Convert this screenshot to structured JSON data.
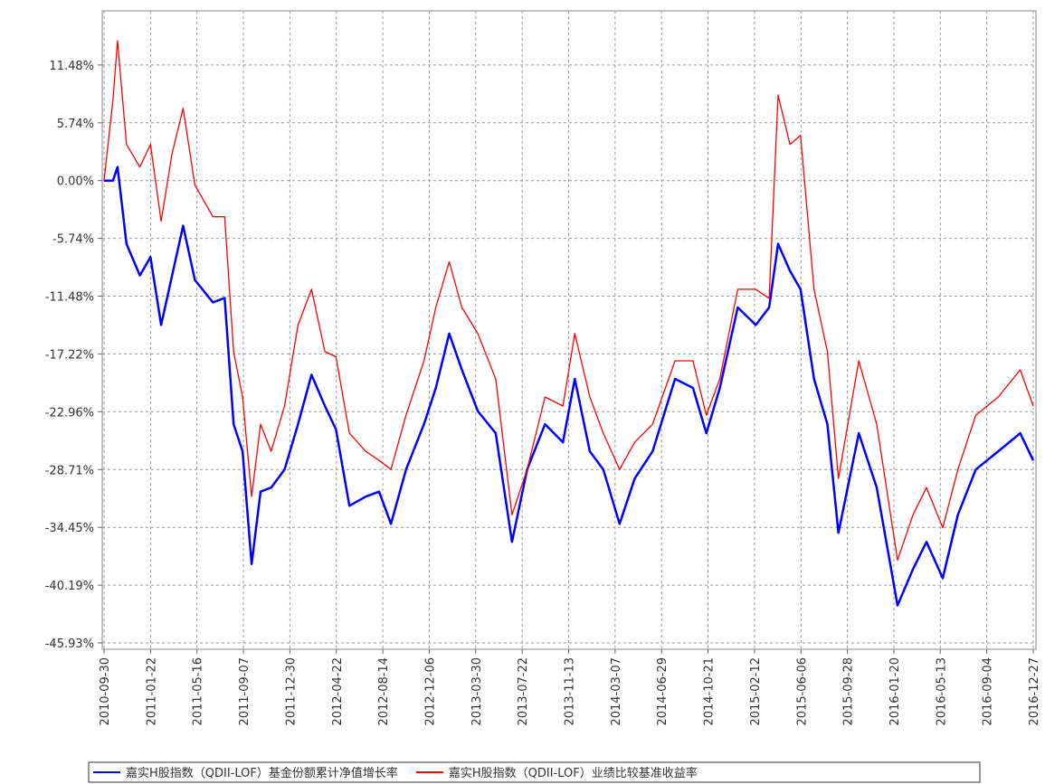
{
  "chart_data": {
    "type": "line",
    "x": [
      "2010-09-30",
      "2010-10-22",
      "2010-11-02",
      "2010-11-24",
      "2010-12-27",
      "2011-01-22",
      "2011-02-17",
      "2011-03-16",
      "2011-04-12",
      "2011-05-11",
      "2011-06-24",
      "2011-07-23",
      "2011-08-14",
      "2011-09-05",
      "2011-09-27",
      "2011-10-19",
      "2011-11-14",
      "2011-12-17",
      "2012-01-19",
      "2012-02-21",
      "2012-03-25",
      "2012-04-21",
      "2012-05-24",
      "2012-07-03",
      "2012-08-05",
      "2012-09-03",
      "2012-10-10",
      "2012-11-23",
      "2012-12-22",
      "2013-01-24",
      "2013-02-24",
      "2013-04-04",
      "2013-05-18",
      "2013-06-27",
      "2013-08-03",
      "2013-09-16",
      "2013-10-30",
      "2013-11-28",
      "2014-01-04",
      "2014-02-06",
      "2014-03-18",
      "2014-04-24",
      "2014-06-07",
      "2014-08-01",
      "2014-09-14",
      "2014-10-17",
      "2014-11-19",
      "2015-01-02",
      "2015-02-15",
      "2015-03-20",
      "2015-04-11",
      "2015-05-10",
      "2015-06-05",
      "2015-07-08",
      "2015-08-10",
      "2015-09-06",
      "2015-10-26",
      "2015-12-09",
      "2016-01-29",
      "2016-03-07",
      "2016-04-09",
      "2016-05-19",
      "2016-06-25",
      "2016-08-08",
      "2016-10-02",
      "2016-11-25",
      "2016-12-27"
    ],
    "series": [
      {
        "name": "嘉实H股指数（QDII-LOF）基金份额累计净值增长率",
        "color": "#0000ff",
        "width": 2.5,
        "values": [
          0,
          0,
          1.35,
          -6.28,
          -9.42,
          -7.6,
          -14.35,
          -9.42,
          -4.49,
          -9.87,
          -12.1,
          -11.66,
          -24.2,
          -26.9,
          -38.1,
          -30.9,
          -30.5,
          -28.7,
          -24.2,
          -19.3,
          -22.4,
          -24.7,
          -32.3,
          -31.4,
          -30.9,
          -34.1,
          -28.7,
          -24.2,
          -20.6,
          -15.2,
          -18.8,
          -22.9,
          -25.1,
          -35.9,
          -28.7,
          -24.2,
          -26.0,
          -19.7,
          -26.9,
          -28.7,
          -34.1,
          -29.6,
          -26.9,
          -19.7,
          -20.6,
          -25.1,
          -20.6,
          -12.6,
          -14.35,
          -12.6,
          -6.28,
          -8.97,
          -10.8,
          -19.7,
          -24.2,
          -35.0,
          -25.1,
          -30.5,
          -42.2,
          -38.6,
          -35.9,
          -39.5,
          -33.2,
          -28.7,
          -26.9,
          -25.1,
          -27.8
        ]
      },
      {
        "name": "嘉实H股指数（QDII-LOF）业绩比较基准收益率",
        "color": "#ff0000",
        "width": 1.3,
        "values": [
          0,
          8.07,
          13.9,
          3.59,
          1.35,
          3.6,
          -4.04,
          2.69,
          7.18,
          -0.45,
          -3.59,
          -3.59,
          -17,
          -21.5,
          -31.4,
          -24.2,
          -26.9,
          -22.4,
          -14.35,
          -10.8,
          -17,
          -17.5,
          -25.1,
          -26.9,
          -27.8,
          -28.7,
          -23.3,
          -17.9,
          -12.6,
          -8.07,
          -12.6,
          -15.2,
          -19.7,
          -33.2,
          -28.7,
          -21.5,
          -22.4,
          -15.2,
          -21.5,
          -25.1,
          -28.7,
          -26.0,
          -24.2,
          -17.9,
          -17.9,
          -23.3,
          -19.7,
          -10.8,
          -10.8,
          -11.7,
          8.5,
          3.59,
          4.49,
          -10.8,
          -17,
          -29.6,
          -17.9,
          -24.2,
          -37.7,
          -33.2,
          -30.5,
          -34.5,
          -28.7,
          -23.3,
          -21.5,
          -18.8,
          -22.4
        ]
      }
    ],
    "xlim": [
      "2010-09-30",
      "2016-12-27"
    ],
    "xticks": [
      "2010-09-30",
      "2011-01-22",
      "2011-05-16",
      "2011-09-07",
      "2011-12-30",
      "2012-04-22",
      "2012-08-14",
      "2012-12-06",
      "2013-03-30",
      "2013-07-22",
      "2013-11-13",
      "2014-03-07",
      "2014-06-29",
      "2014-10-21",
      "2015-02-12",
      "2015-06-06",
      "2015-09-28",
      "2016-01-20",
      "2016-05-13",
      "2016-09-04",
      "2016-12-27"
    ],
    "ylim": [
      -46.56,
      16.86
    ],
    "yticks": [
      {
        "value": -45.93,
        "label": "-45.93%"
      },
      {
        "value": -40.19,
        "label": "-40.19%"
      },
      {
        "value": -34.45,
        "label": "-34.45%"
      },
      {
        "value": -28.71,
        "label": "-28.71%"
      },
      {
        "value": -22.96,
        "label": "-22.96%"
      },
      {
        "value": -17.22,
        "label": "-17.22%"
      },
      {
        "value": -11.48,
        "label": "-11.48%"
      },
      {
        "value": -5.74,
        "label": "-5.74%"
      },
      {
        "value": 0,
        "label": "0.00%"
      },
      {
        "value": 5.74,
        "label": "5.74%"
      },
      {
        "value": 11.48,
        "label": "11.48%"
      }
    ],
    "grid": true
  }
}
